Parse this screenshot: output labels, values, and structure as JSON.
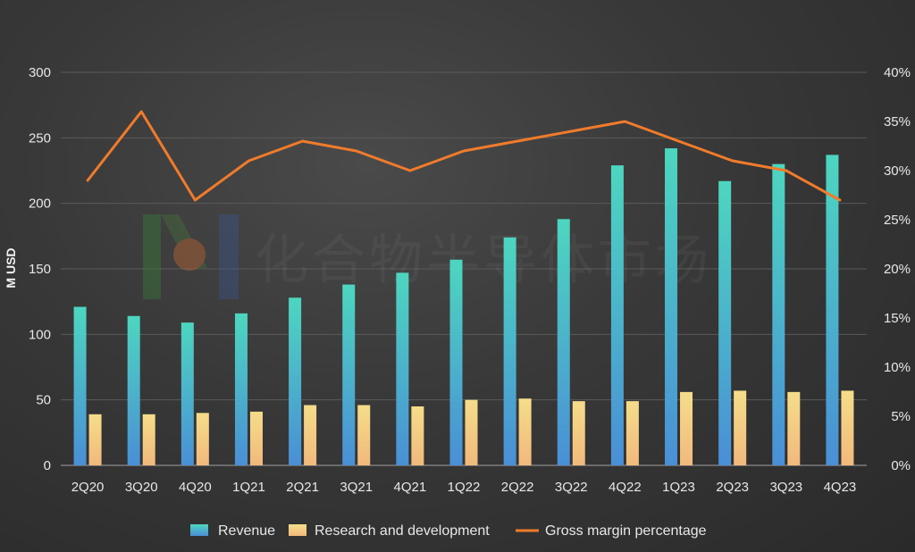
{
  "watermark": {
    "text": "化合物半导体市场"
  },
  "chart_data": {
    "type": "bar",
    "categories": [
      "2Q20",
      "3Q20",
      "4Q20",
      "1Q21",
      "2Q21",
      "3Q21",
      "4Q21",
      "1Q22",
      "2Q22",
      "3Q22",
      "4Q22",
      "1Q23",
      "2Q23",
      "3Q23",
      "4Q23"
    ],
    "ylabel": "M USD",
    "ylim": [
      0,
      300
    ],
    "yticks": [
      "0",
      "50",
      "100",
      "150",
      "200",
      "250",
      "300"
    ],
    "y2lim": [
      0,
      40
    ],
    "y2ticks": [
      "0%",
      "5%",
      "10%",
      "15%",
      "20%",
      "25%",
      "30%",
      "35%",
      "40%"
    ],
    "grid": true,
    "legend_position": "bottom",
    "series": [
      {
        "name": "Revenue",
        "type": "bar",
        "axis": "left",
        "color_top": "#4dd6bf",
        "color_bottom": "#4a8fd6",
        "values": [
          121,
          114,
          109,
          116,
          128,
          138,
          147,
          157,
          174,
          188,
          229,
          242,
          217,
          230,
          237
        ]
      },
      {
        "name": "Research and development",
        "type": "bar",
        "axis": "left",
        "color_top": "#f5dd8a",
        "color_bottom": "#f1b97c",
        "values": [
          39,
          39,
          40,
          41,
          46,
          46,
          45,
          50,
          51,
          49,
          49,
          56,
          57,
          56,
          57
        ]
      },
      {
        "name": "Gross margin percentage",
        "type": "line",
        "axis": "right",
        "color": "#f07c2b",
        "values": [
          29,
          36,
          27,
          31,
          33,
          32,
          30,
          32,
          33,
          34,
          35,
          33,
          31,
          30,
          27
        ]
      }
    ]
  }
}
